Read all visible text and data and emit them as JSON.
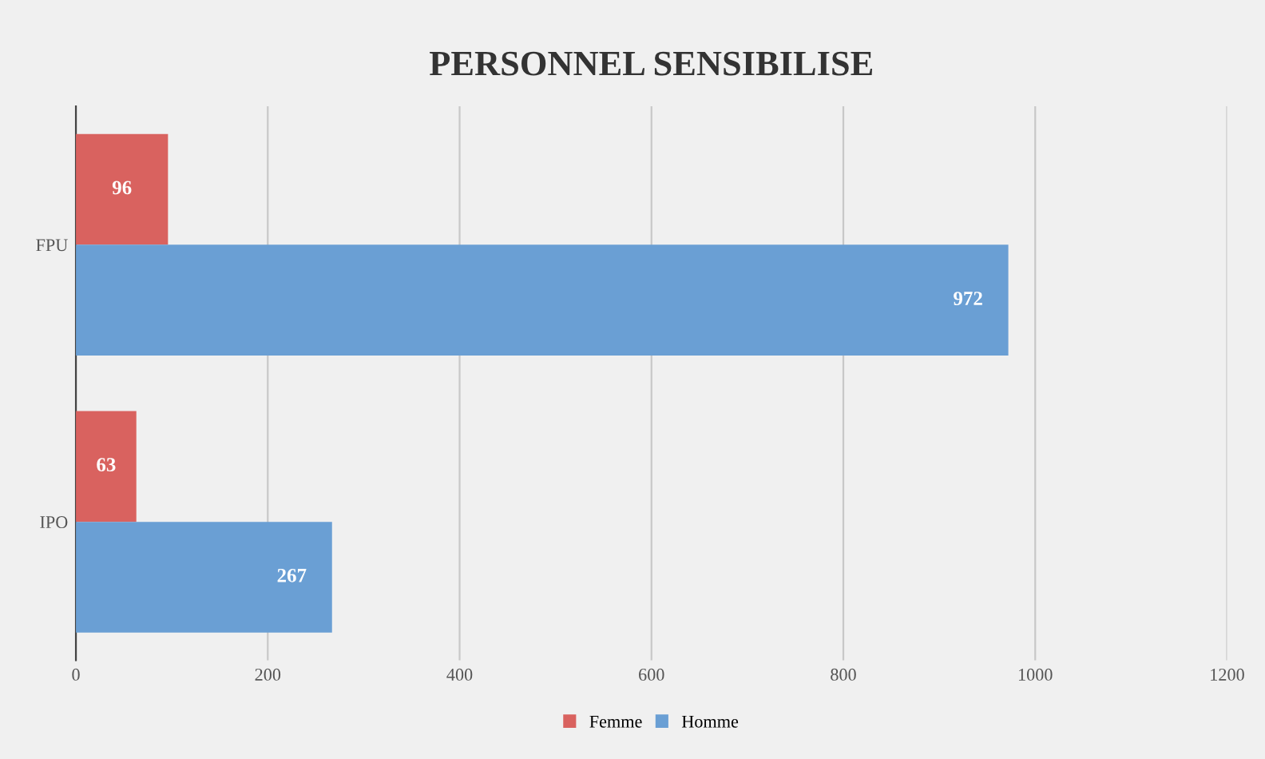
{
  "chart_data": {
    "type": "bar",
    "orientation": "horizontal",
    "title": "PERSONNEL SENSIBILISE",
    "categories": [
      "FPU",
      "IPO"
    ],
    "series": [
      {
        "name": "Femme",
        "color": "#d9625f",
        "values": [
          96,
          63
        ]
      },
      {
        "name": "Homme",
        "color": "#6a9fd4",
        "values": [
          972,
          267
        ]
      }
    ],
    "xlim": [
      0,
      1200
    ],
    "xticks": [
      0,
      200,
      400,
      600,
      800,
      1000,
      1200
    ],
    "grid": "x",
    "legend": "bottom",
    "data_labels": true
  }
}
